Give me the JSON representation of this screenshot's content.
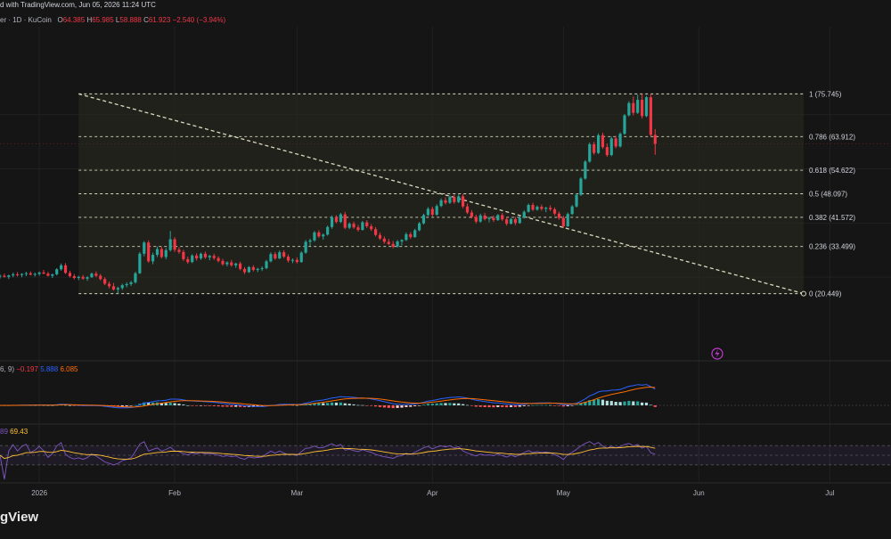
{
  "header": {
    "published": "d with TradingView.com, Jun 05, 2026 11:24 UTC",
    "symbol": "er · 1D · KuCoin",
    "o_label": "O",
    "o_value": "64.385",
    "h_label": "H",
    "h_value": "65.985",
    "l_label": "L",
    "l_value": "58.888",
    "c_label": "C",
    "c_value": "61.923",
    "change": "−2.540 (−3.94%)"
  },
  "macd_legend": {
    "params": "6, 9)",
    "v1": "−0.197",
    "v2": "5.888",
    "v3": "6.085"
  },
  "rsi_legend": {
    "v1": "89",
    "v2": "69.43"
  },
  "colors": {
    "up": "#26a69a",
    "down": "#f23645",
    "fib": "#d9d9c0",
    "macd": "#2962ff",
    "signal": "#ff6d00",
    "rsi": "#7e57c2",
    "rsi_ma": "#ffc233",
    "background": "#151515"
  },
  "x_axis": {
    "labels": [
      "2026",
      "Feb",
      "Mar",
      "Apr",
      "May",
      "Jun",
      "Jul"
    ]
  },
  "brand": "gView",
  "chart_data": {
    "type": "candlestick",
    "timeframe": "1D",
    "x_range": [
      "2025-12-23",
      "2026-07-15"
    ],
    "y_range": [
      10,
      82
    ],
    "last_price": 61.923,
    "fib_levels": [
      {
        "ratio": 1,
        "value": 75.745,
        "label": "1 (75.745)"
      },
      {
        "ratio": 0.786,
        "value": 63.912,
        "label": "0.786 (63.912)"
      },
      {
        "ratio": 0.618,
        "value": 54.622,
        "label": "0.618 (54.622)"
      },
      {
        "ratio": 0.5,
        "value": 48.097,
        "label": "0.5 (48.097)"
      },
      {
        "ratio": 0.382,
        "value": 41.572,
        "label": "0.382 (41.572)"
      },
      {
        "ratio": 0.236,
        "value": 33.499,
        "label": "0.236 (33.499)"
      },
      {
        "ratio": 0,
        "value": 20.449,
        "label": "0 (20.449)"
      }
    ],
    "fib_range": {
      "start": "2026-01-10",
      "end": "2026-06-25"
    },
    "trendline": {
      "from": [
        "2026-01-10",
        75.745
      ],
      "to": [
        "2026-06-25",
        20.449
      ]
    },
    "candles_start": "2025-12-23",
    "candles": [
      [
        25.2,
        25.8,
        24.6,
        25.4
      ],
      [
        25.4,
        26.0,
        24.9,
        25.1
      ],
      [
        25.1,
        25.7,
        24.5,
        25.5
      ],
      [
        25.5,
        26.3,
        25.0,
        25.8
      ],
      [
        25.8,
        26.4,
        25.2,
        25.6
      ],
      [
        25.6,
        26.1,
        25.0,
        25.9
      ],
      [
        25.9,
        26.5,
        25.3,
        26.1
      ],
      [
        26.1,
        26.6,
        25.5,
        25.7
      ],
      [
        25.7,
        26.3,
        25.2,
        25.9
      ],
      [
        25.9,
        26.6,
        25.4,
        26.3
      ],
      [
        26.3,
        27.0,
        25.8,
        26.0
      ],
      [
        26.0,
        26.5,
        25.2,
        25.4
      ],
      [
        25.4,
        26.0,
        24.8,
        25.8
      ],
      [
        25.8,
        27.5,
        25.5,
        27.2
      ],
      [
        27.2,
        28.8,
        26.8,
        28.3
      ],
      [
        28.3,
        28.9,
        25.9,
        26.2
      ],
      [
        26.2,
        26.8,
        24.9,
        25.3
      ],
      [
        25.3,
        25.9,
        24.4,
        24.8
      ],
      [
        24.8,
        25.4,
        24.2,
        25.1
      ],
      [
        25.1,
        25.6,
        24.3,
        24.6
      ],
      [
        24.6,
        25.3,
        24.0,
        25.0
      ],
      [
        25.0,
        26.3,
        24.8,
        26.0
      ],
      [
        26.0,
        26.6,
        25.0,
        25.4
      ],
      [
        25.4,
        25.9,
        24.1,
        24.5
      ],
      [
        24.5,
        25.0,
        22.8,
        23.2
      ],
      [
        23.2,
        23.8,
        21.9,
        22.5
      ],
      [
        22.5,
        23.4,
        21.3,
        21.6
      ],
      [
        21.6,
        22.4,
        20.4,
        22.0
      ],
      [
        22.0,
        23.2,
        21.5,
        22.8
      ],
      [
        22.8,
        23.6,
        22.2,
        23.1
      ],
      [
        23.1,
        24.0,
        22.6,
        23.6
      ],
      [
        23.6,
        26.5,
        23.2,
        26.1
      ],
      [
        26.1,
        32.0,
        25.9,
        31.5
      ],
      [
        31.5,
        35.0,
        30.8,
        34.6
      ],
      [
        34.6,
        35.2,
        29.0,
        29.4
      ],
      [
        29.4,
        31.8,
        28.6,
        31.2
      ],
      [
        31.2,
        33.5,
        30.6,
        32.8
      ],
      [
        32.8,
        33.4,
        30.2,
        30.6
      ],
      [
        30.6,
        33.1,
        30.0,
        32.5
      ],
      [
        32.5,
        37.8,
        32.1,
        35.5
      ],
      [
        35.5,
        36.1,
        32.0,
        32.6
      ],
      [
        32.6,
        33.3,
        31.5,
        32.0
      ],
      [
        32.0,
        32.6,
        29.5,
        30.0
      ],
      [
        30.0,
        30.7,
        28.7,
        29.2
      ],
      [
        29.2,
        31.4,
        28.9,
        31.0
      ],
      [
        31.0,
        31.6,
        29.6,
        30.2
      ],
      [
        30.2,
        31.8,
        29.8,
        31.5
      ],
      [
        31.5,
        32.1,
        30.1,
        30.5
      ],
      [
        30.5,
        31.2,
        29.7,
        30.9
      ],
      [
        30.9,
        31.5,
        29.8,
        30.3
      ],
      [
        30.3,
        30.8,
        29.1,
        29.5
      ],
      [
        29.5,
        30.1,
        28.2,
        28.6
      ],
      [
        28.6,
        29.4,
        28.0,
        29.1
      ],
      [
        29.1,
        29.8,
        27.9,
        28.3
      ],
      [
        28.3,
        29.0,
        27.6,
        28.8
      ],
      [
        28.8,
        29.3,
        26.9,
        27.3
      ],
      [
        27.3,
        27.8,
        25.9,
        26.4
      ],
      [
        26.4,
        28.1,
        26.2,
        27.8
      ],
      [
        27.8,
        28.3,
        26.6,
        27.0
      ],
      [
        27.0,
        27.6,
        26.4,
        27.3
      ],
      [
        27.3,
        28.0,
        26.7,
        27.5
      ],
      [
        27.5,
        29.8,
        27.2,
        29.4
      ],
      [
        29.4,
        31.9,
        29.1,
        31.4
      ],
      [
        31.4,
        32.0,
        29.8,
        30.2
      ],
      [
        30.2,
        32.4,
        30.0,
        31.9
      ],
      [
        31.9,
        32.5,
        30.3,
        30.7
      ],
      [
        30.7,
        31.3,
        29.1,
        29.6
      ],
      [
        29.6,
        30.2,
        28.9,
        29.8
      ],
      [
        29.8,
        30.5,
        28.8,
        29.2
      ],
      [
        29.2,
        32.2,
        29.0,
        31.8
      ],
      [
        31.8,
        35.3,
        31.5,
        34.8
      ],
      [
        34.8,
        35.7,
        33.6,
        35.2
      ],
      [
        35.2,
        37.8,
        34.8,
        37.4
      ],
      [
        37.4,
        38.0,
        35.9,
        36.3
      ],
      [
        36.3,
        37.1,
        35.4,
        36.8
      ],
      [
        36.8,
        39.3,
        36.5,
        38.9
      ],
      [
        38.9,
        42.1,
        38.4,
        41.6
      ],
      [
        41.6,
        42.2,
        39.9,
        40.3
      ],
      [
        40.3,
        42.8,
        40.0,
        42.4
      ],
      [
        42.4,
        43.1,
        38.3,
        38.7
      ],
      [
        38.7,
        40.2,
        38.3,
        39.8
      ],
      [
        39.8,
        40.4,
        38.4,
        38.8
      ],
      [
        38.8,
        39.5,
        37.6,
        38.1
      ],
      [
        38.1,
        40.6,
        37.9,
        40.2
      ],
      [
        40.2,
        40.8,
        38.6,
        39.1
      ],
      [
        39.1,
        39.7,
        37.8,
        38.3
      ],
      [
        38.3,
        38.9,
        36.3,
        36.7
      ],
      [
        36.7,
        37.4,
        35.3,
        35.7
      ],
      [
        35.7,
        36.3,
        34.3,
        34.8
      ],
      [
        34.8,
        35.6,
        33.9,
        34.2
      ],
      [
        34.2,
        35.0,
        33.0,
        33.5
      ],
      [
        33.5,
        35.3,
        33.2,
        34.9
      ],
      [
        34.9,
        35.5,
        33.8,
        35.3
      ],
      [
        35.3,
        37.4,
        35.0,
        36.9
      ],
      [
        36.9,
        37.5,
        35.6,
        36.1
      ],
      [
        36.1,
        38.4,
        35.9,
        38.0
      ],
      [
        38.0,
        40.3,
        37.7,
        39.9
      ],
      [
        39.9,
        42.6,
        39.6,
        42.2
      ],
      [
        42.2,
        44.4,
        41.9,
        43.9
      ],
      [
        43.9,
        44.5,
        41.8,
        42.3
      ],
      [
        42.3,
        45.2,
        42.0,
        44.7
      ],
      [
        44.7,
        46.8,
        44.4,
        46.3
      ],
      [
        46.3,
        47.1,
        45.1,
        45.6
      ],
      [
        45.6,
        47.6,
        45.3,
        47.2
      ],
      [
        47.2,
        47.8,
        45.3,
        45.8
      ],
      [
        45.8,
        47.9,
        45.5,
        47.4
      ],
      [
        47.4,
        48.0,
        44.1,
        44.6
      ],
      [
        44.6,
        45.4,
        42.5,
        42.9
      ],
      [
        42.9,
        43.6,
        41.3,
        41.7
      ],
      [
        41.7,
        42.3,
        39.9,
        40.4
      ],
      [
        40.4,
        42.6,
        40.1,
        42.1
      ],
      [
        42.1,
        42.8,
        40.7,
        41.1
      ],
      [
        41.1,
        41.8,
        40.2,
        41.4
      ],
      [
        41.4,
        42.1,
        40.3,
        40.8
      ],
      [
        40.8,
        42.5,
        40.6,
        42.2
      ],
      [
        42.2,
        42.8,
        40.6,
        41.0
      ],
      [
        41.0,
        41.6,
        39.3,
        39.8
      ],
      [
        39.8,
        41.4,
        39.6,
        41.1
      ],
      [
        41.1,
        41.7,
        39.4,
        40.0
      ],
      [
        40.0,
        41.9,
        39.8,
        41.5
      ],
      [
        41.5,
        43.5,
        41.2,
        43.1
      ],
      [
        43.1,
        45.4,
        42.9,
        45.0
      ],
      [
        45.0,
        45.6,
        43.3,
        43.7
      ],
      [
        43.7,
        44.9,
        43.4,
        44.5
      ],
      [
        44.5,
        45.1,
        43.4,
        43.9
      ],
      [
        43.9,
        44.5,
        43.0,
        44.2
      ],
      [
        44.2,
        44.9,
        43.3,
        43.8
      ],
      [
        43.8,
        44.3,
        42.1,
        42.6
      ],
      [
        42.6,
        43.2,
        40.9,
        41.4
      ],
      [
        41.4,
        42.0,
        38.6,
        39.1
      ],
      [
        39.1,
        42.9,
        38.9,
        42.5
      ],
      [
        42.5,
        45.0,
        42.2,
        44.6
      ],
      [
        44.6,
        48.2,
        44.3,
        47.8
      ],
      [
        47.8,
        52.7,
        47.5,
        52.3
      ],
      [
        52.3,
        57.4,
        52.0,
        57.0
      ],
      [
        57.0,
        62.3,
        56.7,
        61.8
      ],
      [
        61.8,
        62.5,
        58.9,
        59.4
      ],
      [
        59.4,
        64.8,
        59.1,
        64.3
      ],
      [
        64.3,
        65.0,
        60.5,
        61.0
      ],
      [
        61.0,
        62.0,
        58.3,
        58.8
      ],
      [
        58.8,
        63.9,
        58.5,
        63.4
      ],
      [
        63.4,
        64.1,
        60.7,
        61.2
      ],
      [
        61.2,
        65.1,
        60.9,
        64.7
      ],
      [
        64.7,
        70.2,
        64.4,
        69.8
      ],
      [
        69.8,
        73.7,
        69.5,
        73.2
      ],
      [
        73.2,
        75.0,
        69.8,
        70.5
      ],
      [
        70.5,
        75.5,
        70.2,
        74.1
      ],
      [
        74.1,
        75.7,
        68.9,
        69.6
      ],
      [
        69.6,
        75.2,
        69.3,
        74.8
      ],
      [
        74.8,
        75.7,
        64.0,
        64.4
      ],
      [
        64.4,
        66.0,
        58.9,
        61.9
      ]
    ],
    "macd": {
      "label": "6, 9)",
      "macd_value": -0.197,
      "signal_value": 5.888,
      "histogram_value": 6.085
    },
    "rsi": {
      "value_label": "89",
      "ma_value": 69.43,
      "band": [
        30,
        70
      ]
    }
  }
}
